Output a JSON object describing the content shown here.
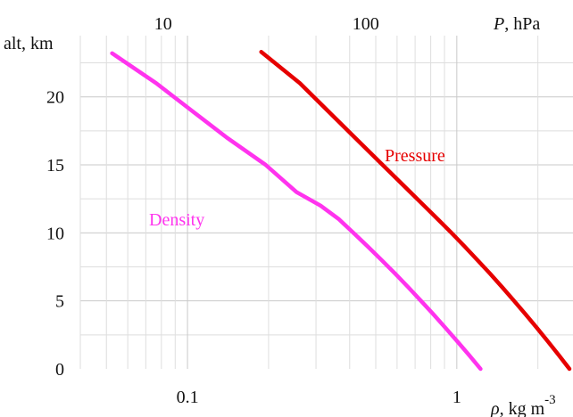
{
  "chart_data": {
    "type": "line",
    "title": "",
    "ylabel": "alt, km",
    "ylim": [
      0,
      24.5
    ],
    "y_ticks": [
      {
        "value": 0,
        "label": "0"
      },
      {
        "value": 5,
        "label": "5"
      },
      {
        "value": 10,
        "label": "10"
      },
      {
        "value": 15,
        "label": "15"
      },
      {
        "value": 20,
        "label": "20"
      }
    ],
    "bottom_axis": {
      "label_symbol": "ρ",
      "label_unit": ", kg m",
      "label_exp": "-3",
      "scale": "log",
      "range": [
        0.04,
        2.7
      ],
      "ticks": [
        {
          "value": 0.1,
          "label": "0.1"
        },
        {
          "value": 1,
          "label": "1"
        }
      ]
    },
    "top_axis": {
      "label_symbol": "P",
      "label_unit": ",  hPa",
      "scale": "log",
      "range": [
        3.9,
        1055
      ],
      "ticks": [
        {
          "value": 10,
          "label": "10"
        },
        {
          "value": 100,
          "label": "100"
        }
      ]
    },
    "grid": true,
    "series": [
      {
        "name": "Density",
        "axis": "bottom",
        "color": "#ff33ee",
        "points": [
          {
            "rho": 1.225,
            "alt": 0
          },
          {
            "rho": 1.112,
            "alt": 1
          },
          {
            "rho": 1.007,
            "alt": 2
          },
          {
            "rho": 0.909,
            "alt": 3
          },
          {
            "rho": 0.819,
            "alt": 4
          },
          {
            "rho": 0.736,
            "alt": 5
          },
          {
            "rho": 0.66,
            "alt": 6
          },
          {
            "rho": 0.59,
            "alt": 7
          },
          {
            "rho": 0.526,
            "alt": 8
          },
          {
            "rho": 0.467,
            "alt": 9
          },
          {
            "rho": 0.413,
            "alt": 10
          },
          {
            "rho": 0.365,
            "alt": 11
          },
          {
            "rho": 0.312,
            "alt": 12
          },
          {
            "rho": 0.254,
            "alt": 13
          },
          {
            "rho": 0.195,
            "alt": 15
          },
          {
            "rho": 0.14,
            "alt": 17
          },
          {
            "rho": 0.1035,
            "alt": 19
          },
          {
            "rho": 0.0765,
            "alt": 21
          },
          {
            "rho": 0.0525,
            "alt": 23.2
          }
        ]
      },
      {
        "name": "Pressure",
        "axis": "top",
        "color": "#e60000",
        "points": [
          {
            "p": 1013,
            "alt": 0
          },
          {
            "p": 899,
            "alt": 1
          },
          {
            "p": 795,
            "alt": 2
          },
          {
            "p": 701,
            "alt": 3
          },
          {
            "p": 616,
            "alt": 4
          },
          {
            "p": 540,
            "alt": 5
          },
          {
            "p": 472,
            "alt": 6
          },
          {
            "p": 411,
            "alt": 7
          },
          {
            "p": 356,
            "alt": 8
          },
          {
            "p": 308,
            "alt": 9
          },
          {
            "p": 265,
            "alt": 10
          },
          {
            "p": 227,
            "alt": 11
          },
          {
            "p": 194,
            "alt": 12
          },
          {
            "p": 166,
            "alt": 13
          },
          {
            "p": 121,
            "alt": 15
          },
          {
            "p": 88.5,
            "alt": 17
          },
          {
            "p": 64.7,
            "alt": 19
          },
          {
            "p": 47.3,
            "alt": 21
          },
          {
            "p": 30.5,
            "alt": 23.3
          }
        ]
      }
    ]
  }
}
